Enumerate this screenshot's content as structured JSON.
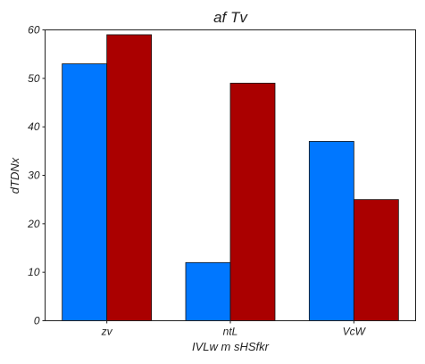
{
  "chart_data": {
    "type": "bar",
    "title": "af Tv",
    "xlabel": "IVLw m sHSfkr",
    "ylabel": "dTDNx",
    "categories": [
      "zv",
      "ntL",
      "VcW"
    ],
    "series": [
      {
        "values": [
          53,
          12,
          37
        ],
        "color": "#0077ff"
      },
      {
        "values": [
          59,
          49,
          25
        ],
        "color": "#aa0000"
      }
    ],
    "ylim": [
      0,
      60
    ],
    "yticks": [
      0,
      10,
      20,
      30,
      40,
      50,
      60
    ],
    "grid": false,
    "legend": "none"
  }
}
